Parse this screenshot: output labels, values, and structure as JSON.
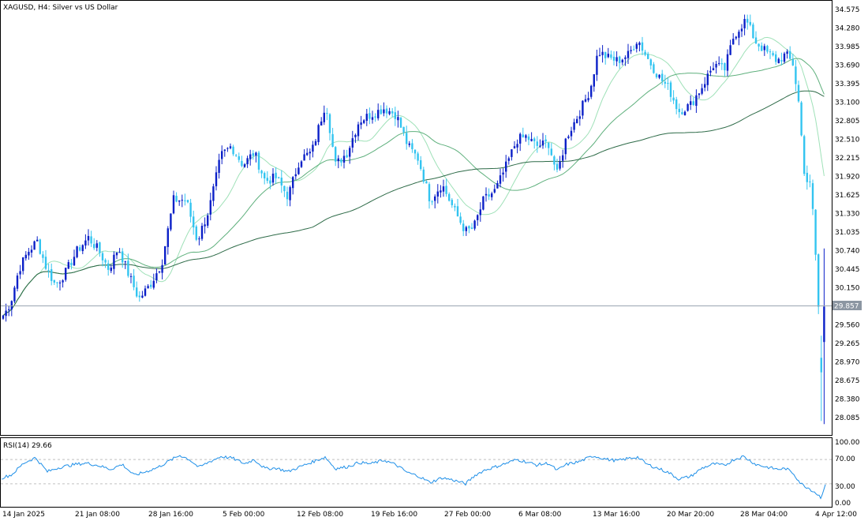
{
  "main_panel": {
    "title": "XAGUSD, H4:  Silver vs US Dollar",
    "price_levels": [
      "34.575",
      "34.280",
      "33.985",
      "33.690",
      "33.395",
      "33.100",
      "32.805",
      "32.510",
      "32.215",
      "31.920",
      "31.625",
      "31.330",
      "31.035",
      "30.740",
      "30.445",
      "30.150",
      "29.857",
      "29.560",
      "29.265",
      "28.970",
      "28.675",
      "28.380",
      "28.085"
    ],
    "current_price": "29.857"
  },
  "rsi_panel": {
    "title": "RSI(14) 29.66",
    "levels": [
      "100.00",
      "70.00",
      "30.00",
      "0.00"
    ]
  },
  "time_axis": {
    "labels": [
      "14 Jan 2025",
      "21 Jan 08:00",
      "28 Jan 16:00",
      "5 Feb 00:00",
      "12 Feb 08:00",
      "19 Feb 16:00",
      "27 Feb 00:00",
      "6 Mar 08:00",
      "13 Mar 16:00",
      "20 Mar 20:00",
      "28 Mar 04:00",
      "4 Apr 12:00"
    ]
  },
  "colors": {
    "bull": "#0b20c8",
    "bear": "#33c4f0",
    "ma_fast": "#9fe1b8",
    "ma_mid": "#5fb07d",
    "ma_slow": "#2e6b48",
    "rsi": "#1e8fe8",
    "grid": "#c0c0c0",
    "current_line": "#9aa5b1",
    "current_tag": "#8c96a2"
  },
  "chart_data": {
    "type": "candlestick",
    "symbol": "XAGUSD",
    "timeframe": "H4",
    "y_range": [
      27.97,
      34.69
    ],
    "rsi_period": 14,
    "rsi_value": 29.66,
    "rsi_range": [
      0,
      100
    ],
    "rsi_levels": [
      70,
      30
    ],
    "anchors": [
      {
        "x": 5,
        "price": 29.72
      },
      {
        "x": 14,
        "price": 29.95
      },
      {
        "x": 24,
        "price": 30.45
      },
      {
        "x": 35,
        "price": 30.72
      },
      {
        "x": 47,
        "price": 30.9
      },
      {
        "x": 58,
        "price": 30.5
      },
      {
        "x": 70,
        "price": 30.2
      },
      {
        "x": 83,
        "price": 30.4
      },
      {
        "x": 98,
        "price": 30.75
      },
      {
        "x": 112,
        "price": 30.95
      },
      {
        "x": 125,
        "price": 30.75
      },
      {
        "x": 138,
        "price": 30.45
      },
      {
        "x": 150,
        "price": 30.8
      },
      {
        "x": 162,
        "price": 30.4
      },
      {
        "x": 176,
        "price": 29.98
      },
      {
        "x": 190,
        "price": 30.2
      },
      {
        "x": 205,
        "price": 30.55
      },
      {
        "x": 220,
        "price": 31.55
      },
      {
        "x": 236,
        "price": 31.55
      },
      {
        "x": 250,
        "price": 30.9
      },
      {
        "x": 265,
        "price": 31.4
      },
      {
        "x": 280,
        "price": 32.25
      },
      {
        "x": 293,
        "price": 32.4
      },
      {
        "x": 308,
        "price": 32.1
      },
      {
        "x": 322,
        "price": 32.3
      },
      {
        "x": 336,
        "price": 31.85
      },
      {
        "x": 350,
        "price": 31.9
      },
      {
        "x": 365,
        "price": 31.6
      },
      {
        "x": 380,
        "price": 32.2
      },
      {
        "x": 395,
        "price": 32.3
      },
      {
        "x": 413,
        "price": 33.1
      },
      {
        "x": 425,
        "price": 32.1
      },
      {
        "x": 440,
        "price": 32.3
      },
      {
        "x": 455,
        "price": 32.8
      },
      {
        "x": 470,
        "price": 32.9
      },
      {
        "x": 487,
        "price": 33.0
      },
      {
        "x": 502,
        "price": 32.9
      },
      {
        "x": 517,
        "price": 32.4
      },
      {
        "x": 530,
        "price": 32.2
      },
      {
        "x": 545,
        "price": 31.55
      },
      {
        "x": 560,
        "price": 31.8
      },
      {
        "x": 575,
        "price": 31.4
      },
      {
        "x": 590,
        "price": 31.05
      },
      {
        "x": 600,
        "price": 31.1
      },
      {
        "x": 613,
        "price": 31.55
      },
      {
        "x": 628,
        "price": 31.7
      },
      {
        "x": 642,
        "price": 32.1
      },
      {
        "x": 655,
        "price": 32.5
      },
      {
        "x": 667,
        "price": 32.55
      },
      {
        "x": 680,
        "price": 32.4
      },
      {
        "x": 695,
        "price": 32.45
      },
      {
        "x": 706,
        "price": 31.95
      },
      {
        "x": 718,
        "price": 32.55
      },
      {
        "x": 733,
        "price": 32.9
      },
      {
        "x": 748,
        "price": 33.3
      },
      {
        "x": 758,
        "price": 33.9
      },
      {
        "x": 770,
        "price": 33.8
      },
      {
        "x": 783,
        "price": 33.75
      },
      {
        "x": 797,
        "price": 33.85
      },
      {
        "x": 808,
        "price": 34.1
      },
      {
        "x": 820,
        "price": 33.8
      },
      {
        "x": 835,
        "price": 33.5
      },
      {
        "x": 848,
        "price": 33.3
      },
      {
        "x": 860,
        "price": 32.95
      },
      {
        "x": 875,
        "price": 33.05
      },
      {
        "x": 890,
        "price": 33.35
      },
      {
        "x": 905,
        "price": 33.7
      },
      {
        "x": 918,
        "price": 33.6
      },
      {
        "x": 930,
        "price": 34.15
      },
      {
        "x": 945,
        "price": 34.4
      },
      {
        "x": 958,
        "price": 34.05
      },
      {
        "x": 970,
        "price": 33.9
      },
      {
        "x": 985,
        "price": 33.75
      },
      {
        "x": 996,
        "price": 33.85
      },
      {
        "x": 1005,
        "price": 33.7
      },
      {
        "x": 1012,
        "price": 33.1
      },
      {
        "x": 1020,
        "price": 31.9
      },
      {
        "x": 1028,
        "price": 31.75
      },
      {
        "x": 1034,
        "price": 30.6
      },
      {
        "x": 1040,
        "price": 29.2
      },
      {
        "x": 1046,
        "price": 29.9
      }
    ],
    "rsi_anchors": [
      {
        "x": 3,
        "value": 40
      },
      {
        "x": 15,
        "value": 45
      },
      {
        "x": 30,
        "value": 64
      },
      {
        "x": 45,
        "value": 73
      },
      {
        "x": 60,
        "value": 50
      },
      {
        "x": 75,
        "value": 57
      },
      {
        "x": 95,
        "value": 62
      },
      {
        "x": 110,
        "value": 64
      },
      {
        "x": 125,
        "value": 60
      },
      {
        "x": 140,
        "value": 54
      },
      {
        "x": 155,
        "value": 62
      },
      {
        "x": 170,
        "value": 44
      },
      {
        "x": 185,
        "value": 50
      },
      {
        "x": 200,
        "value": 57
      },
      {
        "x": 215,
        "value": 68
      },
      {
        "x": 228,
        "value": 77
      },
      {
        "x": 240,
        "value": 70
      },
      {
        "x": 252,
        "value": 57
      },
      {
        "x": 265,
        "value": 66
      },
      {
        "x": 280,
        "value": 75
      },
      {
        "x": 295,
        "value": 72
      },
      {
        "x": 310,
        "value": 63
      },
      {
        "x": 322,
        "value": 70
      },
      {
        "x": 336,
        "value": 55
      },
      {
        "x": 350,
        "value": 56
      },
      {
        "x": 365,
        "value": 50
      },
      {
        "x": 380,
        "value": 58
      },
      {
        "x": 396,
        "value": 66
      },
      {
        "x": 412,
        "value": 74
      },
      {
        "x": 425,
        "value": 55
      },
      {
        "x": 440,
        "value": 58
      },
      {
        "x": 455,
        "value": 65
      },
      {
        "x": 470,
        "value": 63
      },
      {
        "x": 487,
        "value": 69
      },
      {
        "x": 502,
        "value": 61
      },
      {
        "x": 517,
        "value": 48
      },
      {
        "x": 530,
        "value": 43
      },
      {
        "x": 545,
        "value": 32
      },
      {
        "x": 560,
        "value": 40
      },
      {
        "x": 575,
        "value": 36
      },
      {
        "x": 590,
        "value": 30
      },
      {
        "x": 603,
        "value": 45
      },
      {
        "x": 615,
        "value": 53
      },
      {
        "x": 628,
        "value": 58
      },
      {
        "x": 642,
        "value": 64
      },
      {
        "x": 655,
        "value": 70
      },
      {
        "x": 667,
        "value": 66
      },
      {
        "x": 680,
        "value": 61
      },
      {
        "x": 695,
        "value": 64
      },
      {
        "x": 706,
        "value": 52
      },
      {
        "x": 718,
        "value": 62
      },
      {
        "x": 733,
        "value": 66
      },
      {
        "x": 752,
        "value": 76
      },
      {
        "x": 770,
        "value": 70
      },
      {
        "x": 783,
        "value": 68
      },
      {
        "x": 797,
        "value": 72
      },
      {
        "x": 808,
        "value": 74
      },
      {
        "x": 820,
        "value": 62
      },
      {
        "x": 835,
        "value": 55
      },
      {
        "x": 848,
        "value": 48
      },
      {
        "x": 860,
        "value": 38
      },
      {
        "x": 875,
        "value": 42
      },
      {
        "x": 890,
        "value": 56
      },
      {
        "x": 905,
        "value": 63
      },
      {
        "x": 918,
        "value": 60
      },
      {
        "x": 930,
        "value": 70
      },
      {
        "x": 942,
        "value": 75
      },
      {
        "x": 958,
        "value": 62
      },
      {
        "x": 970,
        "value": 58
      },
      {
        "x": 985,
        "value": 54
      },
      {
        "x": 996,
        "value": 55
      },
      {
        "x": 1005,
        "value": 48
      },
      {
        "x": 1015,
        "value": 30
      },
      {
        "x": 1026,
        "value": 22
      },
      {
        "x": 1034,
        "value": 15
      },
      {
        "x": 1040,
        "value": 8
      },
      {
        "x": 1047,
        "value": 29.66
      }
    ]
  }
}
